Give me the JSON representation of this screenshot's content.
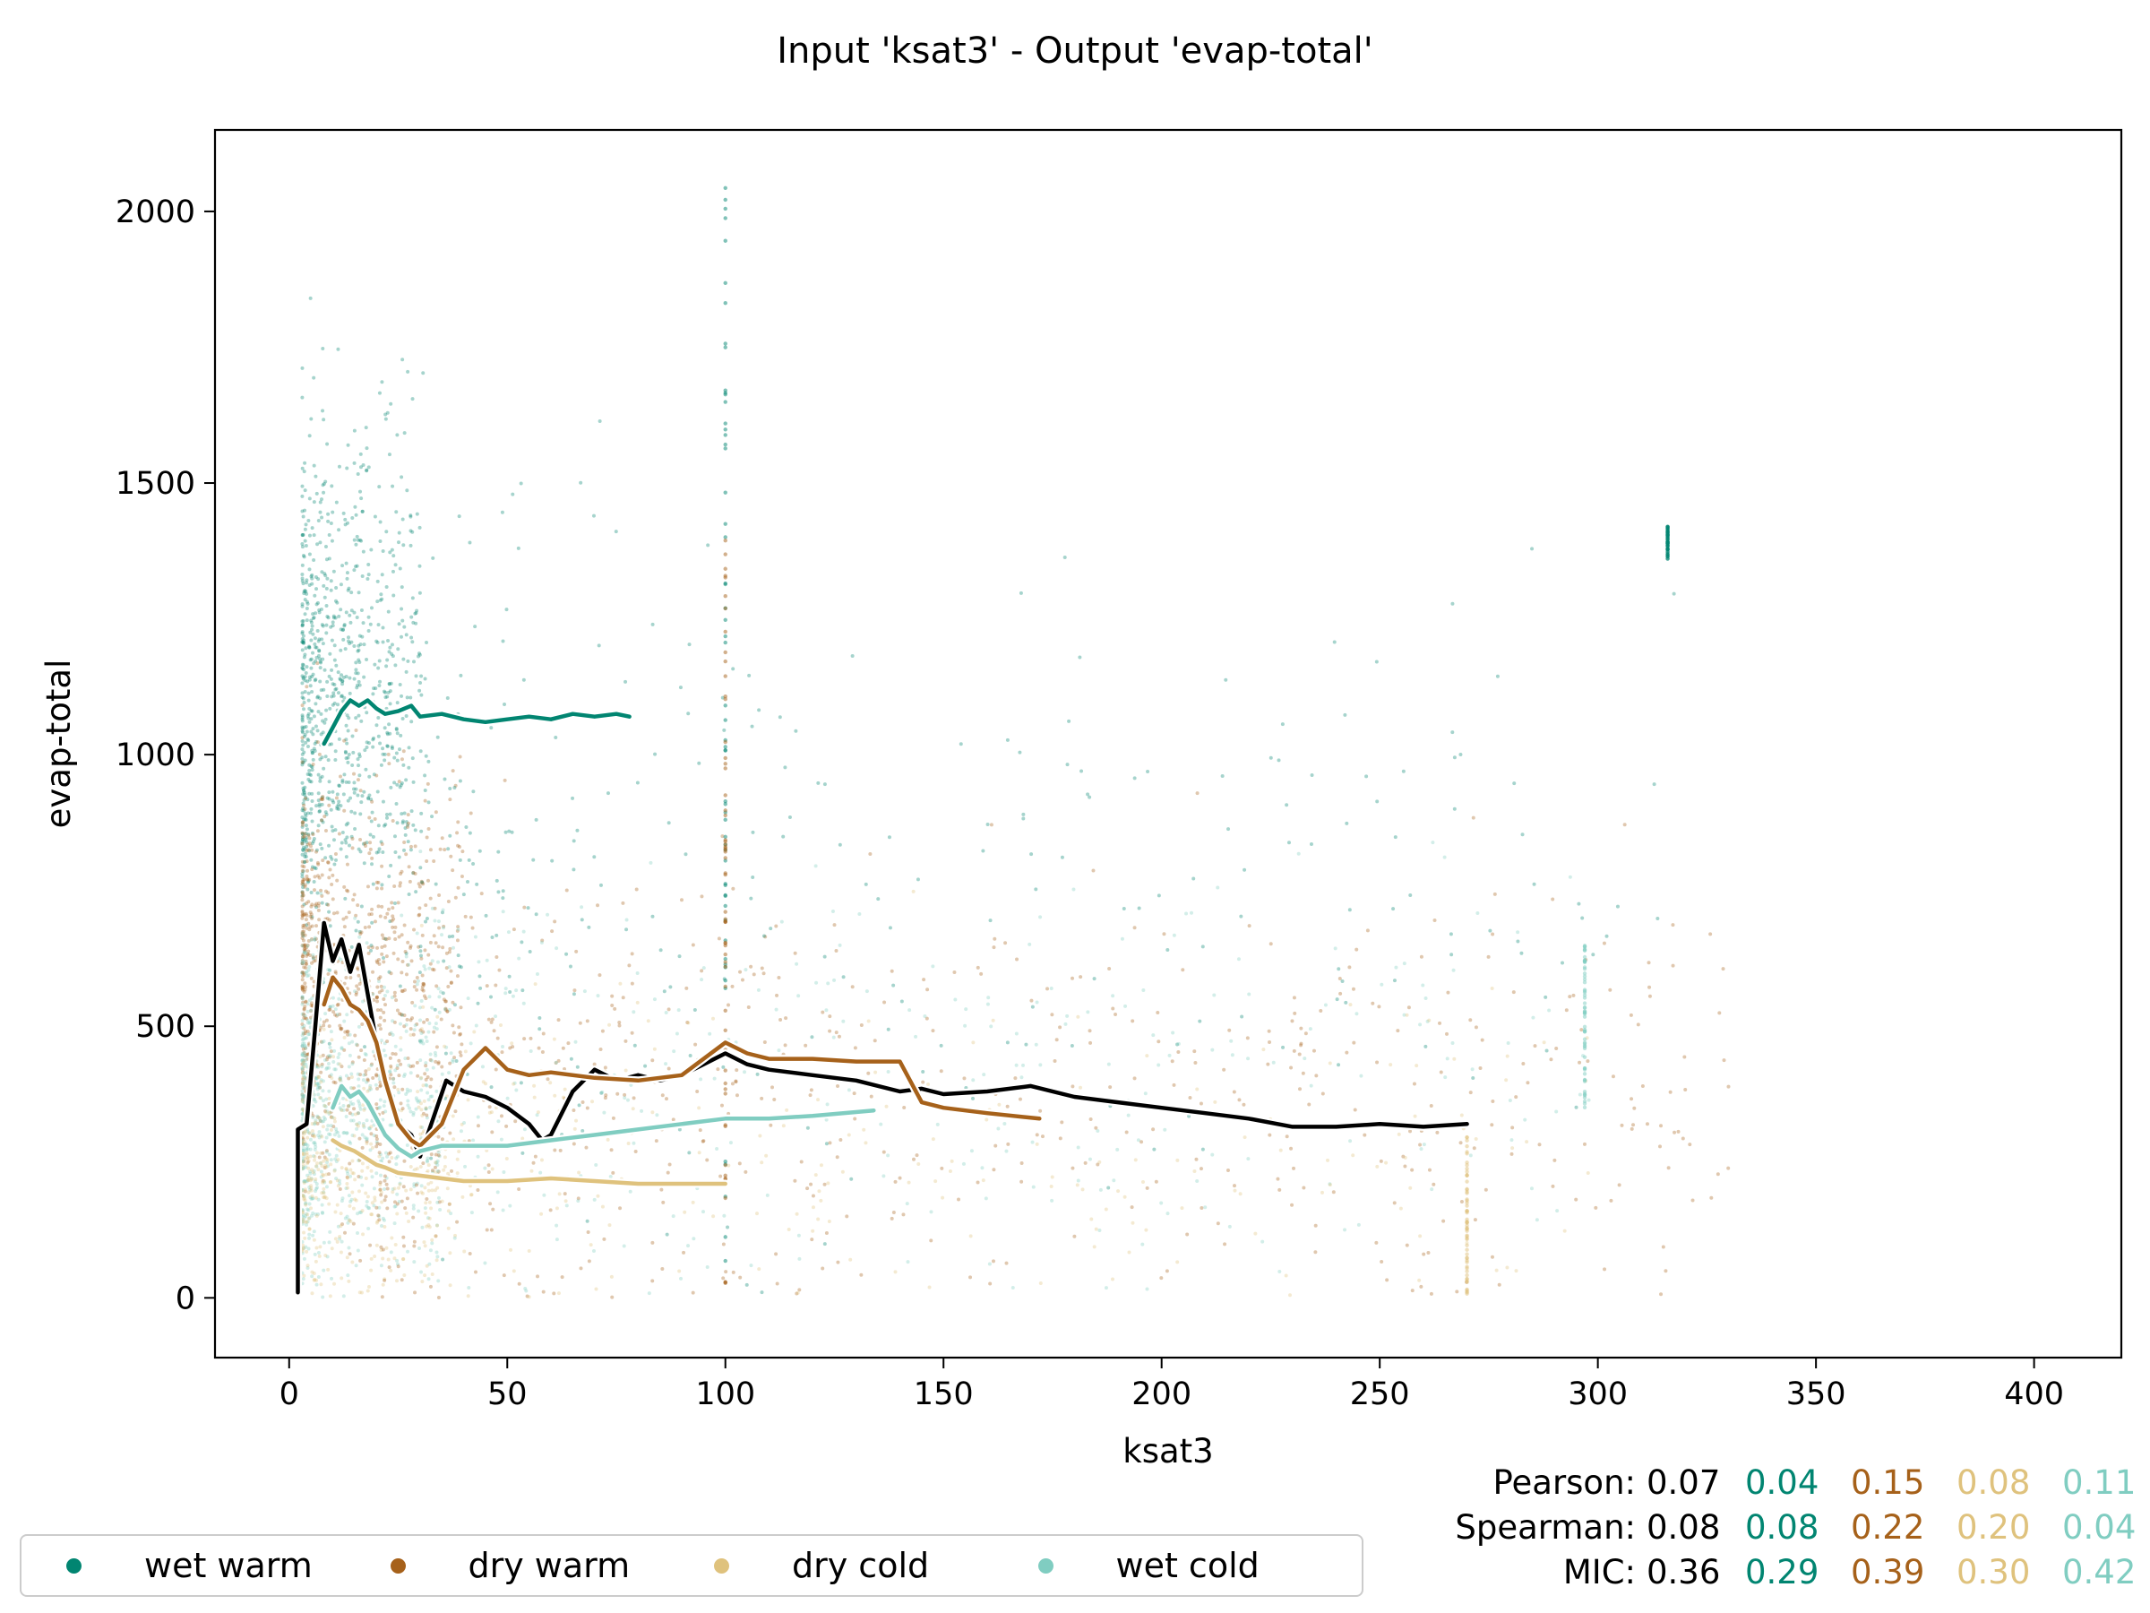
{
  "chart_data": {
    "type": "scatter",
    "title": "Input 'ksat3' - Output 'evap-total'",
    "xlabel": "ksat3",
    "ylabel": "evap-total",
    "xlim": [
      -17,
      420
    ],
    "ylim": [
      -110,
      2150
    ],
    "x_ticks": [
      0,
      50,
      100,
      150,
      200,
      250,
      300,
      350,
      400
    ],
    "y_ticks": [
      0,
      500,
      1000,
      1500,
      2000
    ],
    "grid": false,
    "legend_position": "bottom-left",
    "series": [
      {
        "name": "wet warm",
        "color": "#018571"
      },
      {
        "name": "dry warm",
        "color": "#a6611a"
      },
      {
        "name": "dry cold",
        "color": "#dfc27d"
      },
      {
        "name": "wet cold",
        "color": "#80cdc1"
      }
    ],
    "trend_lines": [
      {
        "series": "all",
        "color": "#000000",
        "x": [
          2,
          2,
          4,
          6,
          8,
          10,
          12,
          14,
          16,
          18,
          20,
          22,
          25,
          28,
          30,
          33,
          36,
          40,
          45,
          50,
          55,
          58,
          60,
          65,
          70,
          75,
          80,
          85,
          90,
          95,
          100,
          105,
          110,
          120,
          130,
          140,
          145,
          150,
          160,
          170,
          180,
          190,
          200,
          210,
          220,
          230,
          240,
          250,
          260,
          270
        ],
        "y": [
          10,
          310,
          320,
          500,
          690,
          620,
          660,
          600,
          650,
          560,
          470,
          400,
          320,
          300,
          260,
          330,
          400,
          380,
          370,
          350,
          320,
          290,
          300,
          380,
          420,
          400,
          410,
          400,
          410,
          430,
          450,
          430,
          420,
          410,
          400,
          380,
          385,
          375,
          380,
          390,
          370,
          360,
          350,
          340,
          330,
          315,
          315,
          320,
          315,
          320
        ]
      },
      {
        "series": "wet warm",
        "color": "#018571",
        "x": [
          8,
          10,
          12,
          14,
          16,
          18,
          20,
          22,
          25,
          28,
          30,
          35,
          40,
          45,
          50,
          55,
          60,
          65,
          70,
          75,
          78
        ],
        "y": [
          1020,
          1050,
          1080,
          1100,
          1090,
          1100,
          1085,
          1075,
          1080,
          1090,
          1070,
          1075,
          1065,
          1060,
          1065,
          1070,
          1065,
          1075,
          1070,
          1075,
          1070
        ]
      },
      {
        "series": "dry warm",
        "color": "#a6611a",
        "x": [
          8,
          10,
          12,
          14,
          16,
          18,
          20,
          22,
          25,
          28,
          30,
          35,
          40,
          45,
          50,
          55,
          60,
          70,
          80,
          90,
          95,
          100,
          105,
          110,
          120,
          130,
          140,
          145,
          150,
          160,
          172
        ],
        "y": [
          540,
          590,
          570,
          540,
          530,
          510,
          470,
          400,
          320,
          290,
          280,
          320,
          420,
          460,
          420,
          410,
          415,
          405,
          400,
          410,
          440,
          470,
          450,
          440,
          440,
          435,
          435,
          360,
          350,
          340,
          330
        ]
      },
      {
        "series": "dry cold",
        "color": "#dfc27d",
        "x": [
          10,
          12,
          15,
          18,
          20,
          22,
          25,
          30,
          35,
          40,
          50,
          60,
          70,
          80,
          90,
          100
        ],
        "y": [
          290,
          280,
          270,
          255,
          245,
          240,
          230,
          225,
          220,
          215,
          215,
          220,
          215,
          210,
          210,
          210
        ]
      },
      {
        "series": "wet cold",
        "color": "#80cdc1",
        "x": [
          10,
          12,
          14,
          16,
          18,
          20,
          22,
          25,
          28,
          30,
          35,
          40,
          50,
          60,
          70,
          80,
          90,
          100,
          110,
          120,
          134
        ],
        "y": [
          350,
          390,
          370,
          380,
          360,
          330,
          300,
          275,
          260,
          270,
          280,
          280,
          280,
          290,
          300,
          310,
          320,
          330,
          330,
          335,
          345
        ]
      }
    ]
  },
  "stats": {
    "pearson_label": "Pearson:",
    "spearman_label": "Spearman:",
    "mic_label": "MIC:",
    "pearson": [
      "0.07",
      "0.04",
      "0.15",
      "0.08",
      "0.11"
    ],
    "spearman": [
      "0.08",
      "0.08",
      "0.22",
      "0.20",
      "0.04"
    ],
    "mic": [
      "0.36",
      "0.29",
      "0.39",
      "0.30",
      "0.42"
    ],
    "colors": [
      "#000000",
      "#018571",
      "#a6611a",
      "#dfc27d",
      "#80cdc1"
    ]
  },
  "legend": [
    "wet warm",
    "dry warm",
    "dry cold",
    "wet cold"
  ]
}
